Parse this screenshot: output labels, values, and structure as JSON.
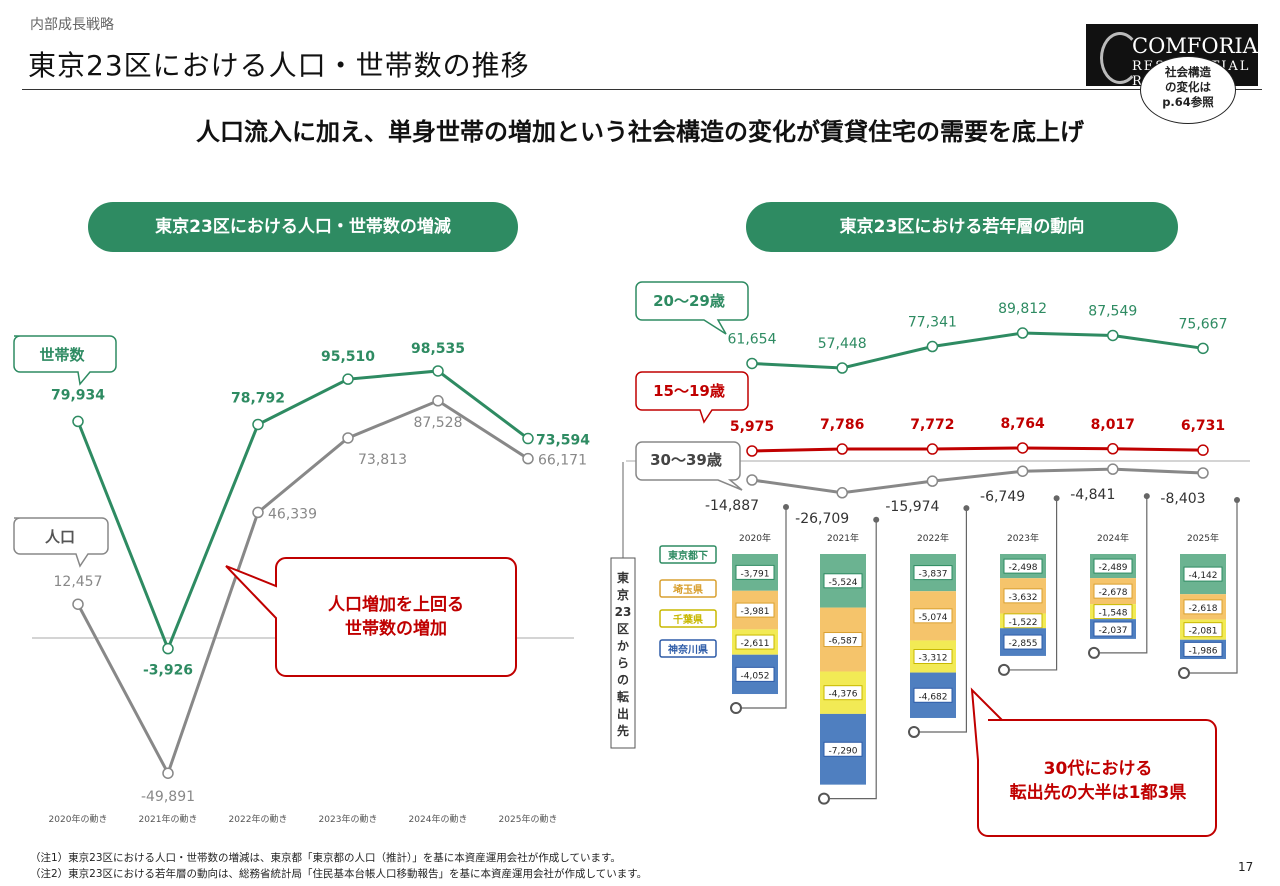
{
  "header": {
    "breadcrumb": "内部成長戦略",
    "title": "東京23区における人口・世帯数の推移",
    "headline": "人口流入に加え、単身世帯の増加という社会構造の変化が賃貸住宅の需要を底上げ",
    "logo_line1": "COMFORIA",
    "logo_line2": "RESIDENTIAL REIT",
    "ref_badge": [
      "社会構造",
      "の変化は",
      "p.64参照"
    ]
  },
  "left_panel": {
    "title": "東京23区における人口・世帯数の増減",
    "callout": [
      "人口増加を上回る",
      "世帯数の増加"
    ]
  },
  "right_panel": {
    "title": "東京23区における若年層の動向",
    "callout": [
      "30代における",
      "転出先の大半は1都3県"
    ],
    "side_label": "東京23区からの転出先"
  },
  "colors": {
    "green": "#2e8b62",
    "gray": "#888888",
    "red": "#c00000",
    "tokyo": "#6bb391",
    "saitama": "#f5c46b",
    "chiba": "#f2ea55",
    "kanagawa": "#4f7fc0"
  },
  "chart_data": [
    {
      "type": "line",
      "title": "東京23区における人口・世帯数の増減",
      "categories": [
        "2020年の動き",
        "2021年の動き",
        "2022年の動き",
        "2023年の動き",
        "2024年の動き",
        "2025年の動き"
      ],
      "series": [
        {
          "name": "世帯数",
          "values": [
            79934,
            -3926,
            78792,
            95510,
            98535,
            73594
          ],
          "labels": [
            "79,934",
            "-3,926",
            "78,792",
            "95,510",
            "98,535",
            "73,594"
          ]
        },
        {
          "name": "人口",
          "values": [
            12457,
            -49891,
            46339,
            73813,
            87528,
            66171
          ],
          "labels": [
            "12,457",
            "-49,891",
            "46,339",
            "73,813",
            "87,528",
            "66,171"
          ]
        }
      ]
    },
    {
      "type": "line",
      "title": "東京23区における若年層の動向",
      "categories": [
        "2020年",
        "2021年",
        "2022年",
        "2023年",
        "2024年",
        "2025年"
      ],
      "series": [
        {
          "name": "20～29歳",
          "values": [
            61654,
            57448,
            77341,
            89812,
            87549,
            75667
          ],
          "labels": [
            "61,654",
            "57,448",
            "77,341",
            "89,812",
            "87,549",
            "75,667"
          ]
        },
        {
          "name": "15～19歳",
          "values": [
            5975,
            7786,
            7772,
            8764,
            8017,
            6731
          ],
          "labels": [
            "5,975",
            "7,786",
            "7,772",
            "8,764",
            "8,017",
            "6,731"
          ]
        },
        {
          "name": "30～39歳",
          "values": [
            -14887,
            -26709,
            -15974,
            -6749,
            -4841,
            -8403
          ],
          "labels": [
            "-14,887",
            "-26,709",
            "-15,974",
            "-6,749",
            "-4,841",
            "-8,403"
          ]
        }
      ]
    },
    {
      "type": "bar",
      "stacked": true,
      "title": "30～39歳の転出先",
      "categories": [
        "2020年",
        "2021年",
        "2022年",
        "2023年",
        "2024年",
        "2025年"
      ],
      "series": [
        {
          "name": "東京都下",
          "values": [
            -3791,
            -5524,
            -3837,
            -2498,
            -2489,
            -4142
          ],
          "labels": [
            "-3,791",
            "-5,524",
            "-3,837",
            "-2,498",
            "-2,489",
            "-4,142"
          ]
        },
        {
          "name": "埼玉県",
          "values": [
            -3981,
            -6587,
            -5074,
            -3632,
            -2678,
            -2618
          ],
          "labels": [
            "-3,981",
            "-6,587",
            "-5,074",
            "-3,632",
            "-2,678",
            "-2,618"
          ]
        },
        {
          "name": "千葉県",
          "values": [
            -2611,
            -4376,
            -3312,
            -1522,
            -1548,
            -2081
          ],
          "labels": [
            "-2,611",
            "-4,376",
            "-3,312",
            "-1,522",
            "-1,548",
            "-2,081"
          ]
        },
        {
          "name": "神奈川県",
          "values": [
            -4052,
            -7290,
            -4682,
            -2855,
            -2037,
            -1986
          ],
          "labels": [
            "-4,052",
            "-7,290",
            "-4,682",
            "-2,855",
            "-2,037",
            "-1,986"
          ]
        }
      ]
    }
  ],
  "footnotes": [
    "（注1）東京23区における人口・世帯数の増減は、東京都「東京都の人口（推計）」を基に本資産運用会社が作成しています。",
    "（注2）東京23区における若年層の動向は、総務省統計局「住民基本台帳人口移動報告」を基に本資産運用会社が作成しています。"
  ],
  "page_number": "17"
}
